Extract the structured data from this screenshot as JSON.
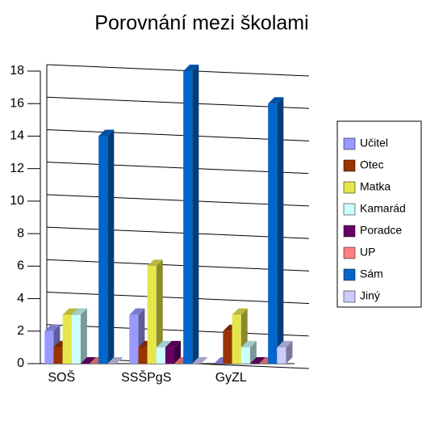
{
  "chart_data": {
    "type": "bar3d",
    "title": "Porovnání mezi školami",
    "categories": [
      "SOŠ",
      "SSŠPgS",
      "GyZL"
    ],
    "series": [
      {
        "name": "Učitel",
        "color": "#9999ff",
        "values": [
          2,
          3,
          0
        ]
      },
      {
        "name": "Otec",
        "color": "#993300",
        "values": [
          1,
          1,
          2
        ]
      },
      {
        "name": "Matka",
        "color": "#e6e64c",
        "values": [
          3,
          6,
          3
        ]
      },
      {
        "name": "Kamarád",
        "color": "#ccffff",
        "values": [
          3,
          1,
          1
        ]
      },
      {
        "name": "Poradce",
        "color": "#660066",
        "values": [
          0,
          1,
          0
        ]
      },
      {
        "name": "UP",
        "color": "#ff8080",
        "values": [
          0,
          0,
          0
        ]
      },
      {
        "name": "Sám",
        "color": "#0066cc",
        "values": [
          14,
          18,
          16
        ]
      },
      {
        "name": "Jiný",
        "color": "#ccccff",
        "values": [
          0,
          0,
          1
        ]
      }
    ],
    "ylim": [
      0,
      18
    ],
    "yticks": [
      0,
      2,
      4,
      6,
      8,
      10,
      12,
      14,
      16,
      18
    ],
    "grid": true,
    "legend": "right"
  }
}
